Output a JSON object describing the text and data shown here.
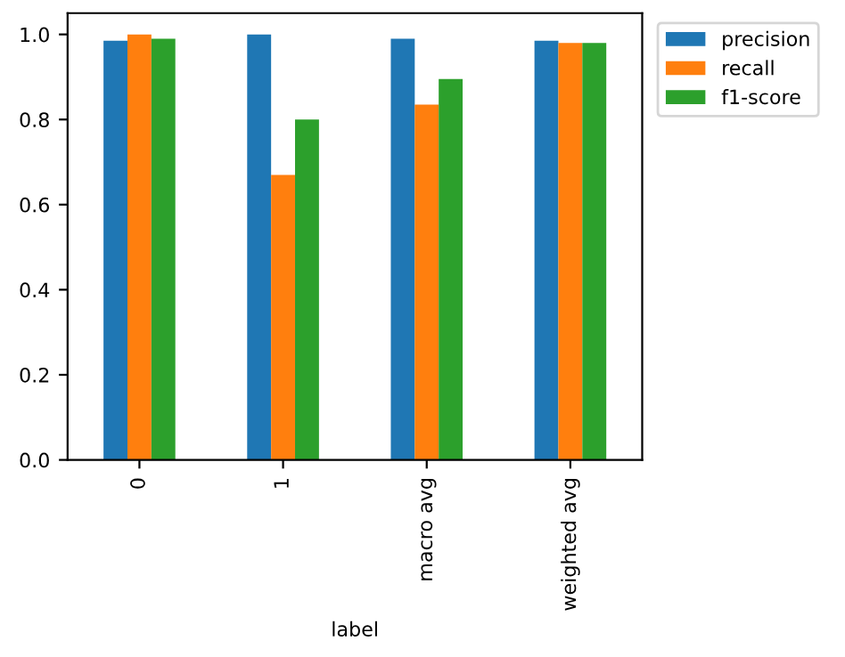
{
  "chart_data": {
    "type": "bar",
    "xlabel": "label",
    "categories": [
      "0",
      "1",
      "macro avg",
      "weighted avg"
    ],
    "series": [
      {
        "name": "precision",
        "color": "#1f77b4",
        "values": [
          0.985,
          1.0,
          0.99,
          0.985
        ]
      },
      {
        "name": "recall",
        "color": "#ff7f0e",
        "values": [
          1.0,
          0.67,
          0.835,
          0.98
        ]
      },
      {
        "name": "f1-score",
        "color": "#2ca02c",
        "values": [
          0.99,
          0.8,
          0.895,
          0.98
        ]
      }
    ],
    "ylim": [
      0,
      1.05
    ],
    "yticks": [
      {
        "value": 0,
        "label": "0.0"
      },
      {
        "value": 0.2,
        "label": "0.2"
      },
      {
        "value": 0.4,
        "label": "0.4"
      },
      {
        "value": 0.6,
        "label": "0.6"
      },
      {
        "value": 0.8,
        "label": "0.8"
      },
      {
        "value": 1.0,
        "label": "1.0"
      }
    ],
    "grid": false,
    "legend": "top right"
  }
}
